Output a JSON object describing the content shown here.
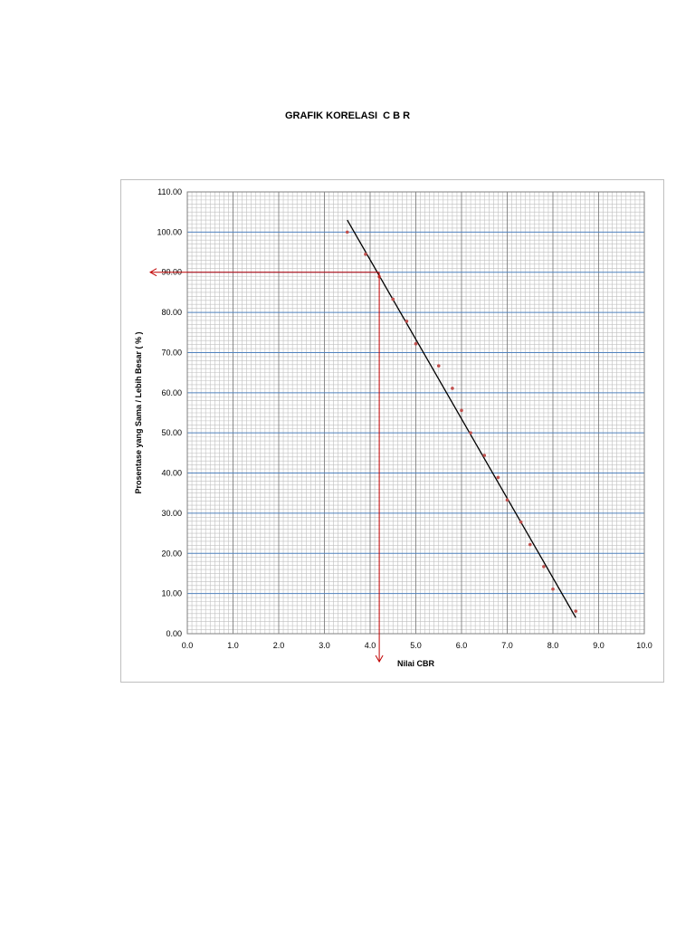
{
  "chart_data": {
    "type": "scatter",
    "title": "GRAFIK KORELASI  C B R",
    "xlabel": "Nilai CBR",
    "ylabel": "Prosentase yang Sama / Lebih Besar  ( % )",
    "xlim": [
      0,
      10
    ],
    "ylim": [
      0,
      110
    ],
    "x_ticks": [
      "0.0",
      "1.0",
      "2.0",
      "3.0",
      "4.0",
      "5.0",
      "6.0",
      "7.0",
      "8.0",
      "9.0",
      "10.0"
    ],
    "y_ticks": [
      "0.00",
      "10.00",
      "20.00",
      "30.00",
      "40.00",
      "50.00",
      "60.00",
      "70.00",
      "80.00",
      "90.00",
      "100.00",
      "110.00"
    ],
    "grid": true,
    "series": [
      {
        "type": "scatter",
        "color": "#c0504d",
        "points": [
          [
            3.5,
            100.0
          ],
          [
            3.9,
            94.5
          ],
          [
            4.2,
            88.9
          ],
          [
            4.5,
            83.3
          ],
          [
            4.8,
            77.8
          ],
          [
            5.0,
            72.2
          ],
          [
            5.5,
            66.7
          ],
          [
            5.8,
            61.1
          ],
          [
            6.0,
            55.6
          ],
          [
            6.2,
            50.0
          ],
          [
            6.5,
            44.4
          ],
          [
            6.8,
            38.9
          ],
          [
            7.0,
            33.3
          ],
          [
            7.3,
            27.8
          ],
          [
            7.5,
            22.2
          ],
          [
            7.8,
            16.7
          ],
          [
            8.0,
            11.1
          ],
          [
            8.5,
            5.6
          ]
        ]
      },
      {
        "type": "line",
        "color": "#000000",
        "points": [
          [
            3.5,
            103.0
          ],
          [
            8.5,
            4.0
          ]
        ]
      }
    ],
    "reference": {
      "x": 4.2,
      "y": 90,
      "color": "#c00000"
    }
  }
}
